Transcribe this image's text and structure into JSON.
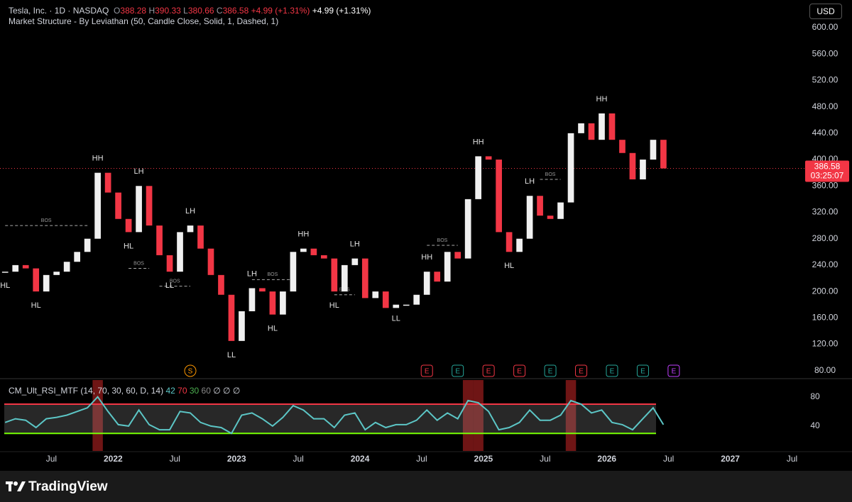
{
  "chart_data": {
    "type": "candlestick",
    "header": {
      "symbol": "Tesla, Inc. · 1D · NASDAQ",
      "o_label": "O",
      "open": 388.28,
      "h_label": "H",
      "high": 390.33,
      "l_label": "L",
      "low": 380.66,
      "c_label": "C",
      "close": 386.58,
      "change": "+4.99 (+1.31%)",
      "change_again": "+4.99 (+1.31%)"
    },
    "indicator": "Market Structure - By Leviathan (50, Candle Close, Solid, 1, Dashed, 1)",
    "currency": "USD",
    "countdown": "03:25:07",
    "x": [
      "2021-02",
      "2021-03",
      "2021-04",
      "2021-05",
      "2021-06",
      "2021-07",
      "2021-08",
      "2021-09",
      "2021-10",
      "2021-11",
      "2021-12",
      "2022-01",
      "2022-02",
      "2022-03",
      "2022-04",
      "2022-05",
      "2022-06",
      "2022-07",
      "2022-08",
      "2022-09",
      "2022-10",
      "2022-11",
      "2022-12",
      "2023-01",
      "2023-02",
      "2023-03",
      "2023-04",
      "2023-05",
      "2023-06",
      "2023-07",
      "2023-08",
      "2023-09",
      "2023-10",
      "2023-11",
      "2023-12",
      "2024-01",
      "2024-02",
      "2024-03",
      "2024-04",
      "2024-05",
      "2024-06",
      "2024-07",
      "2024-08",
      "2024-09",
      "2024-10",
      "2024-11",
      "2024-12",
      "2025-01",
      "2025-02",
      "2025-03",
      "2025-04",
      "2025-05",
      "2025-06",
      "2025-07",
      "2025-08",
      "2025-09",
      "2025-10",
      "2025-11",
      "2025-12",
      "2026-01",
      "2026-02",
      "2026-03",
      "2026-04",
      "2026-05",
      "2026-06"
    ],
    "series": [
      {
        "name": "Tesla",
        "up_color": "#f0f0f0",
        "down_color": "#f23645",
        "values": [
          230,
          240,
          235,
          200,
          225,
          230,
          245,
          260,
          280,
          380,
          350,
          310,
          290,
          360,
          300,
          255,
          230,
          290,
          300,
          265,
          225,
          195,
          125,
          170,
          205,
          200,
          165,
          200,
          260,
          265,
          255,
          250,
          200,
          240,
          250,
          190,
          200,
          175,
          180,
          180,
          195,
          230,
          215,
          260,
          250,
          340,
          405,
          400,
          290,
          260,
          280,
          345,
          315,
          310,
          335,
          440,
          455,
          430,
          470,
          430,
          410,
          370,
          400,
          430,
          386.58
        ]
      }
    ],
    "xlim": [
      "2021-02",
      "2027-08"
    ],
    "ylim": [
      70,
      642
    ],
    "xticks": [
      {
        "value": "2021-07",
        "label": "Jul"
      },
      {
        "value": "2022-01",
        "label": "2022"
      },
      {
        "value": "2022-07",
        "label": "Jul"
      },
      {
        "value": "2023-01",
        "label": "2023"
      },
      {
        "value": "2023-07",
        "label": "Jul"
      },
      {
        "value": "2024-01",
        "label": "2024"
      },
      {
        "value": "2024-07",
        "label": "Jul"
      },
      {
        "value": "2025-01",
        "label": "2025"
      },
      {
        "value": "2025-07",
        "label": "Jul"
      },
      {
        "value": "2026-01",
        "label": "2026"
      },
      {
        "value": "2026-07",
        "label": "Jul"
      },
      {
        "value": "2027-01",
        "label": "2027"
      },
      {
        "value": "2027-07",
        "label": "Jul"
      }
    ],
    "yticks": [
      {
        "value": 80,
        "label": "80.00"
      },
      {
        "value": 120,
        "label": "120.00"
      },
      {
        "value": 160,
        "label": "160.00"
      },
      {
        "value": 200,
        "label": "200.00"
      },
      {
        "value": 240,
        "label": "240.00"
      },
      {
        "value": 280,
        "label": "280.00"
      },
      {
        "value": 320,
        "label": "320.00"
      },
      {
        "value": 360,
        "label": "360.00"
      },
      {
        "value": 400,
        "label": "400.00"
      },
      {
        "value": 440,
        "label": "440.00"
      },
      {
        "value": 480,
        "label": "480.00"
      },
      {
        "value": 520,
        "label": "520.00"
      },
      {
        "value": 560,
        "label": "560.00"
      },
      {
        "value": 600,
        "label": "600.00"
      }
    ],
    "annotations": [
      {
        "text": "HL",
        "x": "2021-02"
      },
      {
        "text": "HL",
        "x": "2021-05"
      },
      {
        "text": "HH",
        "x": "2021-11"
      },
      {
        "text": "HL",
        "x": "2022-02"
      },
      {
        "text": "LH",
        "x": "2022-03"
      },
      {
        "text": "LL",
        "x": "2022-06"
      },
      {
        "text": "LH",
        "x": "2022-08"
      },
      {
        "text": "LL",
        "x": "2022-12"
      },
      {
        "text": "LH",
        "x": "2023-02"
      },
      {
        "text": "HL",
        "x": "2023-04"
      },
      {
        "text": "HH",
        "x": "2023-07"
      },
      {
        "text": "HL",
        "x": "2023-10"
      },
      {
        "text": "LH",
        "x": "2023-12"
      },
      {
        "text": "LL",
        "x": "2024-04"
      },
      {
        "text": "HH",
        "x": "2024-07"
      },
      {
        "text": "HH",
        "x": "2024-12"
      },
      {
        "text": "HL",
        "x": "2025-03"
      },
      {
        "text": "LH",
        "x": "2025-05"
      },
      {
        "text": "HH",
        "x": "2025-12"
      }
    ],
    "bos": [
      {
        "label": "BOS",
        "from": "2021-02",
        "to": "2021-10",
        "level": 300
      },
      {
        "label": "BOS",
        "from": "2022-02",
        "to": "2022-04",
        "level": 235
      },
      {
        "label": "BOS",
        "from": "2022-05",
        "to": "2022-08",
        "level": 208
      },
      {
        "label": "BOS",
        "from": "2023-02",
        "to": "2023-06",
        "level": 218
      },
      {
        "label": "BOS",
        "from": "2023-10",
        "to": "2023-12",
        "level": 195
      },
      {
        "label": "BOS",
        "from": "2024-07",
        "to": "2024-10",
        "level": 270
      },
      {
        "label": "BOS",
        "from": "2025-06",
        "to": "2025-08",
        "level": 370
      }
    ],
    "events": [
      {
        "label": "S",
        "x": "2022-08",
        "color": "#ff9800"
      },
      {
        "label": "E",
        "x": "2024-07",
        "color": "#f23645"
      },
      {
        "label": "E",
        "x": "2024-10",
        "color": "#26a69a"
      },
      {
        "label": "E",
        "x": "2025-01",
        "color": "#f23645"
      },
      {
        "label": "E",
        "x": "2025-04",
        "color": "#f23645"
      },
      {
        "label": "E",
        "x": "2025-07",
        "color": "#26a69a"
      },
      {
        "label": "E",
        "x": "2025-10",
        "color": "#f23645"
      },
      {
        "label": "E",
        "x": "2026-01",
        "color": "#26a69a"
      },
      {
        "label": "E",
        "x": "2026-04",
        "color": "#26a69a"
      },
      {
        "label": "E",
        "x": "2026-07",
        "color": "#c040ff"
      }
    ],
    "rsi": {
      "name": "CM_Ult_RSI_MTF (14, 70, 30, 60, D, 14)",
      "color": "#5cc6c6",
      "values": [
        45,
        50,
        48,
        38,
        50,
        52,
        55,
        60,
        65,
        80,
        60,
        42,
        40,
        62,
        42,
        35,
        35,
        60,
        58,
        45,
        40,
        38,
        30,
        55,
        58,
        50,
        40,
        52,
        68,
        62,
        50,
        50,
        38,
        55,
        58,
        35,
        45,
        38,
        42,
        42,
        48,
        62,
        48,
        58,
        50,
        75,
        72,
        60,
        35,
        38,
        45,
        62,
        48,
        48,
        55,
        75,
        70,
        58,
        62,
        45,
        42,
        35,
        50,
        65,
        42
      ],
      "upper": 70,
      "lower": 30,
      "mid": 60,
      "flags": "∅ ∅ ∅",
      "ylim": [
        6,
        103
      ],
      "yticks": [
        40,
        80
      ]
    },
    "brand": "TradingView"
  }
}
